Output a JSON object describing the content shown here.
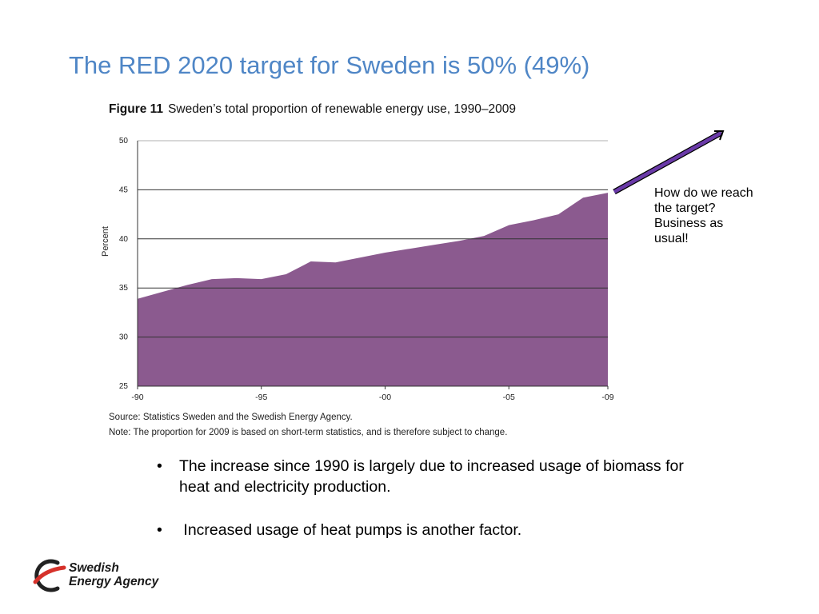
{
  "slide": {
    "title": "The RED 2020 target for Sweden is 50% (49%)"
  },
  "figure": {
    "number": "Figure 11",
    "caption": "Sweden’s total proportion of renewable energy use, 1990–2009",
    "source": "Source: Statistics Sweden and the Swedish Energy Agency.",
    "note": "Note: The proportion for 2009 is based on short-term statistics, and is therefore subject to change."
  },
  "callout": {
    "lines": [
      "How do we reach",
      "the target?",
      "Business as",
      "usual!"
    ]
  },
  "bullets": [
    {
      "marker": "•",
      "text": "The increase since 1990 is largely due to increased usage of biomass for heat and electricity production."
    },
    {
      "marker": "•",
      "text": " Increased usage of heat pumps is another factor."
    }
  ],
  "logo": {
    "line1": "Swedish",
    "line2": "Energy Agency",
    "icon": "swedish-energy-agency-logo-icon"
  },
  "colors": {
    "title": "#4f86c6",
    "area": "#8b5a8f",
    "arrow": "#6a3aa8"
  },
  "chart_data": {
    "type": "area",
    "title": "Sweden’s total proportion of renewable energy use, 1990–2009",
    "xlabel": "",
    "ylabel": "Percent",
    "x": [
      1990,
      1991,
      1992,
      1993,
      1994,
      1995,
      1996,
      1997,
      1998,
      1999,
      2000,
      2001,
      2002,
      2003,
      2004,
      2005,
      2006,
      2007,
      2008,
      2009
    ],
    "values": [
      33.9,
      34.6,
      35.3,
      35.9,
      36.0,
      35.9,
      36.4,
      37.7,
      37.6,
      38.1,
      38.6,
      39.0,
      39.4,
      39.8,
      40.3,
      41.4,
      41.9,
      42.5,
      44.2,
      44.7
    ],
    "xticks": [
      {
        "x": 1990,
        "label": "-90"
      },
      {
        "x": 1995,
        "label": "-95"
      },
      {
        "x": 2000,
        "label": "-00"
      },
      {
        "x": 2005,
        "label": "-05"
      },
      {
        "x": 2009,
        "label": "-09"
      }
    ],
    "yticks": [
      25,
      30,
      35,
      40,
      45,
      50
    ],
    "xlim": [
      1990,
      2009
    ],
    "ylim": [
      25,
      50
    ],
    "grid": true
  }
}
